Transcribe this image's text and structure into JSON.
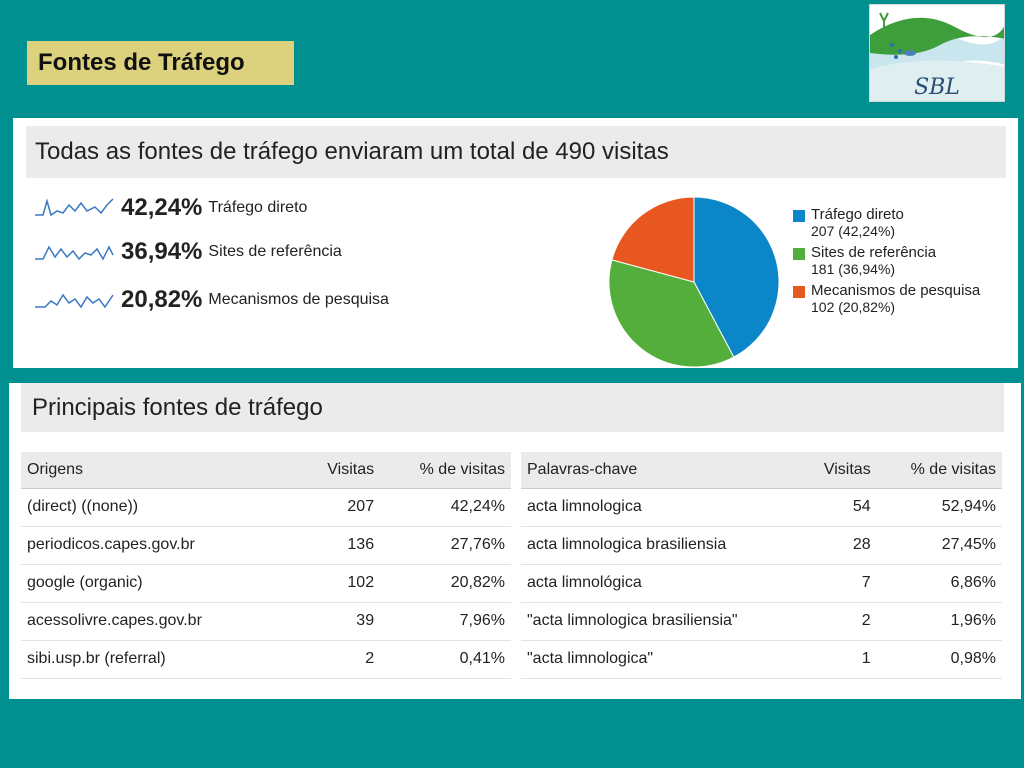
{
  "slide_title": "Fontes de Tráfego",
  "logo_text": "SBL",
  "overview": {
    "title": "Todas as fontes de tráfego enviaram um total de 490 visitas",
    "sources": [
      {
        "pct": "42,24%",
        "label": "Tráfego direto"
      },
      {
        "pct": "36,94%",
        "label": "Sites de referência"
      },
      {
        "pct": "20,82%",
        "label": "Mecanismos de pesquisa"
      }
    ]
  },
  "chart_data": {
    "type": "pie",
    "series": [
      {
        "name": "Tráfego direto",
        "value": 207,
        "label": "207 (42,24%)",
        "color": "#0b86c9"
      },
      {
        "name": "Sites de referência",
        "value": 181,
        "label": "181 (36,94%)",
        "color": "#53ae3c"
      },
      {
        "name": "Mecanismos de pesquisa",
        "value": 102,
        "label": "102 (20,82%)",
        "color": "#e8571f"
      }
    ],
    "legend": "right"
  },
  "top_sources": {
    "title": "Principais fontes de tráfego",
    "origins": {
      "headers": [
        "Origens",
        "Visitas",
        "% de visitas"
      ],
      "rows": [
        [
          "(direct) ((none))",
          "207",
          "42,24%"
        ],
        [
          "periodicos.capes.gov.br",
          "136",
          "27,76%"
        ],
        [
          "google (organic)",
          "102",
          "20,82%"
        ],
        [
          "acessolivre.capes.gov.br",
          "39",
          "7,96%"
        ],
        [
          "sibi.usp.br (referral)",
          "2",
          "0,41%"
        ]
      ]
    },
    "keywords": {
      "headers": [
        "Palavras-chave",
        "Visitas",
        "% de visitas"
      ],
      "rows": [
        [
          "acta limnologica",
          "54",
          "52,94%"
        ],
        [
          "acta limnologica brasiliensia",
          "28",
          "27,45%"
        ],
        [
          "acta limnológica",
          "7",
          "6,86%"
        ],
        [
          "\"acta limnologica brasiliensia\"",
          "2",
          "1,96%"
        ],
        [
          "\"acta limnologica\"",
          "1",
          "0,98%"
        ]
      ]
    }
  }
}
